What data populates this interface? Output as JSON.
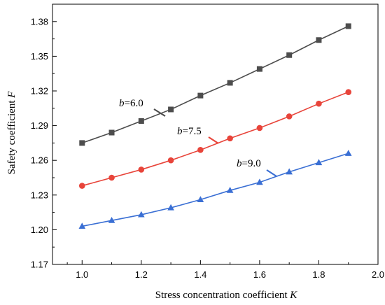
{
  "chart_data": {
    "type": "line",
    "title": "",
    "xlabel": "Stress concentration coefficient",
    "xlabel_symbol": "K",
    "ylabel": "Safety coefficient",
    "ylabel_symbol": "F",
    "xlim": [
      0.9,
      2.0
    ],
    "ylim": [
      1.17,
      1.395
    ],
    "x_ticks": [
      1.0,
      1.2,
      1.4,
      1.6,
      1.8,
      2.0
    ],
    "x_tick_labels": [
      "1.0",
      "1.2",
      "1.4",
      "1.6",
      "1.8",
      "2.0"
    ],
    "y_ticks": [
      1.17,
      1.2,
      1.23,
      1.26,
      1.29,
      1.32,
      1.35,
      1.38
    ],
    "y_tick_labels": [
      "1.17",
      "1.20",
      "1.23",
      "1.26",
      "1.29",
      "1.32",
      "1.35",
      "1.38"
    ],
    "grid": false,
    "legend": "none",
    "x": [
      1.0,
      1.1,
      1.2,
      1.3,
      1.4,
      1.5,
      1.6,
      1.7,
      1.8,
      1.9
    ],
    "series": [
      {
        "name": "b=6.0",
        "label_var": "b",
        "label_value": "=6.0",
        "color": "#4d4d4d",
        "marker": "square",
        "values": [
          1.275,
          1.284,
          1.294,
          1.304,
          1.316,
          1.327,
          1.339,
          1.351,
          1.364,
          1.376
        ]
      },
      {
        "name": "b=7.5",
        "label_var": "b",
        "label_value": "=7.5",
        "color": "#e8443a",
        "marker": "circle",
        "values": [
          1.238,
          1.245,
          1.252,
          1.26,
          1.269,
          1.279,
          1.288,
          1.298,
          1.309,
          1.319
        ]
      },
      {
        "name": "b=9.0",
        "label_var": "b",
        "label_value": "=9.0",
        "color": "#3a6fd4",
        "marker": "triangle",
        "values": [
          1.203,
          1.208,
          1.213,
          1.219,
          1.226,
          1.234,
          1.241,
          1.25,
          1.258,
          1.266
        ]
      }
    ]
  }
}
